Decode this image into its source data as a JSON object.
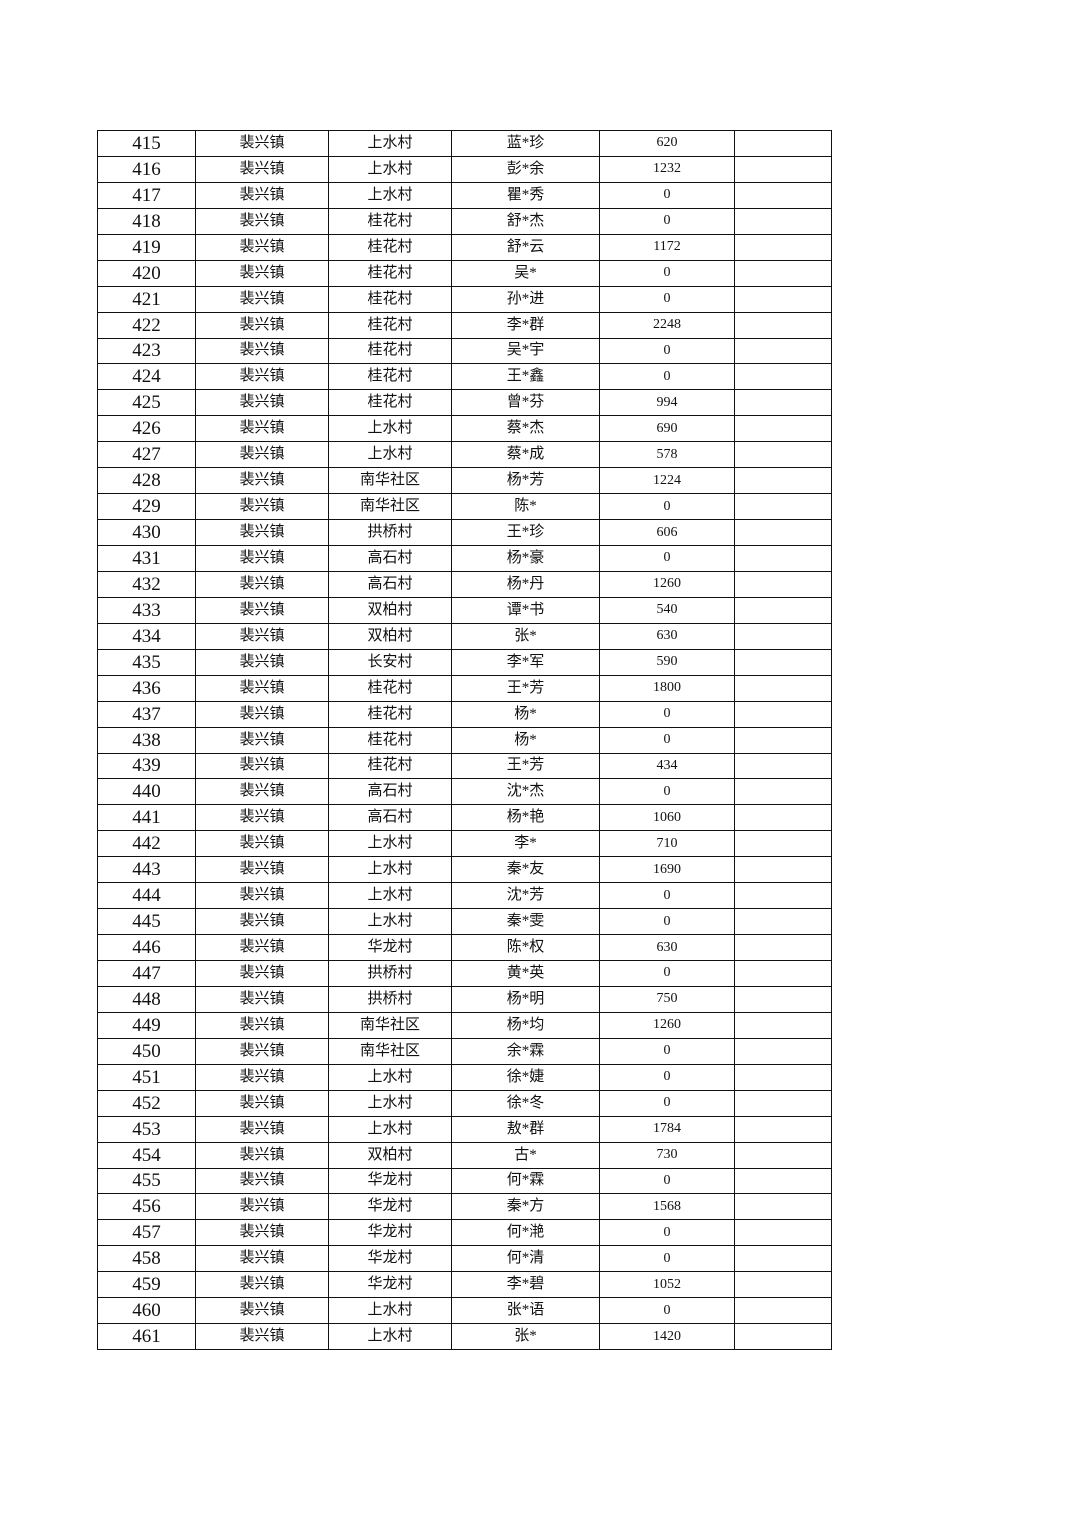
{
  "table": {
    "rows": [
      [
        "415",
        "裴兴镇",
        "上水村",
        "蓝*珍",
        "620",
        ""
      ],
      [
        "416",
        "裴兴镇",
        "上水村",
        "彭*余",
        "1232",
        ""
      ],
      [
        "417",
        "裴兴镇",
        "上水村",
        "瞿*秀",
        "0",
        ""
      ],
      [
        "418",
        "裴兴镇",
        "桂花村",
        "舒*杰",
        "0",
        ""
      ],
      [
        "419",
        "裴兴镇",
        "桂花村",
        "舒*云",
        "1172",
        ""
      ],
      [
        "420",
        "裴兴镇",
        "桂花村",
        "吴*",
        "0",
        ""
      ],
      [
        "421",
        "裴兴镇",
        "桂花村",
        "孙*进",
        "0",
        ""
      ],
      [
        "422",
        "裴兴镇",
        "桂花村",
        "李*群",
        "2248",
        ""
      ],
      [
        "423",
        "裴兴镇",
        "桂花村",
        "吴*宇",
        "0",
        ""
      ],
      [
        "424",
        "裴兴镇",
        "桂花村",
        "王*鑫",
        "0",
        ""
      ],
      [
        "425",
        "裴兴镇",
        "桂花村",
        "曾*芬",
        "994",
        ""
      ],
      [
        "426",
        "裴兴镇",
        "上水村",
        "蔡*杰",
        "690",
        ""
      ],
      [
        "427",
        "裴兴镇",
        "上水村",
        "蔡*成",
        "578",
        ""
      ],
      [
        "428",
        "裴兴镇",
        "南华社区",
        "杨*芳",
        "1224",
        ""
      ],
      [
        "429",
        "裴兴镇",
        "南华社区",
        "陈*",
        "0",
        ""
      ],
      [
        "430",
        "裴兴镇",
        "拱桥村",
        "王*珍",
        "606",
        ""
      ],
      [
        "431",
        "裴兴镇",
        "高石村",
        "杨*豪",
        "0",
        ""
      ],
      [
        "432",
        "裴兴镇",
        "高石村",
        "杨*丹",
        "1260",
        ""
      ],
      [
        "433",
        "裴兴镇",
        "双柏村",
        "谭*书",
        "540",
        ""
      ],
      [
        "434",
        "裴兴镇",
        "双柏村",
        "张*",
        "630",
        ""
      ],
      [
        "435",
        "裴兴镇",
        "长安村",
        "李*军",
        "590",
        ""
      ],
      [
        "436",
        "裴兴镇",
        "桂花村",
        "王*芳",
        "1800",
        ""
      ],
      [
        "437",
        "裴兴镇",
        "桂花村",
        "杨*",
        "0",
        ""
      ],
      [
        "438",
        "裴兴镇",
        "桂花村",
        "杨*",
        "0",
        ""
      ],
      [
        "439",
        "裴兴镇",
        "桂花村",
        "王*芳",
        "434",
        ""
      ],
      [
        "440",
        "裴兴镇",
        "高石村",
        "沈*杰",
        "0",
        ""
      ],
      [
        "441",
        "裴兴镇",
        "高石村",
        "杨*艳",
        "1060",
        ""
      ],
      [
        "442",
        "裴兴镇",
        "上水村",
        "李*",
        "710",
        ""
      ],
      [
        "443",
        "裴兴镇",
        "上水村",
        "秦*友",
        "1690",
        ""
      ],
      [
        "444",
        "裴兴镇",
        "上水村",
        "沈*芳",
        "0",
        ""
      ],
      [
        "445",
        "裴兴镇",
        "上水村",
        "秦*雯",
        "0",
        ""
      ],
      [
        "446",
        "裴兴镇",
        "华龙村",
        "陈*权",
        "630",
        ""
      ],
      [
        "447",
        "裴兴镇",
        "拱桥村",
        "黄*英",
        "0",
        ""
      ],
      [
        "448",
        "裴兴镇",
        "拱桥村",
        "杨*明",
        "750",
        ""
      ],
      [
        "449",
        "裴兴镇",
        "南华社区",
        "杨*均",
        "1260",
        ""
      ],
      [
        "450",
        "裴兴镇",
        "南华社区",
        "余*霖",
        "0",
        ""
      ],
      [
        "451",
        "裴兴镇",
        "上水村",
        "徐*婕",
        "0",
        ""
      ],
      [
        "452",
        "裴兴镇",
        "上水村",
        "徐*冬",
        "0",
        ""
      ],
      [
        "453",
        "裴兴镇",
        "上水村",
        "敖*群",
        "1784",
        ""
      ],
      [
        "454",
        "裴兴镇",
        "双柏村",
        "古*",
        "730",
        ""
      ],
      [
        "455",
        "裴兴镇",
        "华龙村",
        "何*霖",
        "0",
        ""
      ],
      [
        "456",
        "裴兴镇",
        "华龙村",
        "秦*方",
        "1568",
        ""
      ],
      [
        "457",
        "裴兴镇",
        "华龙村",
        "何*滟",
        "0",
        ""
      ],
      [
        "458",
        "裴兴镇",
        "华龙村",
        "何*清",
        "0",
        ""
      ],
      [
        "459",
        "裴兴镇",
        "华龙村",
        "李*碧",
        "1052",
        ""
      ],
      [
        "460",
        "裴兴镇",
        "上水村",
        "张*语",
        "0",
        ""
      ],
      [
        "461",
        "裴兴镇",
        "上水村",
        "张*",
        "1420",
        ""
      ]
    ]
  }
}
